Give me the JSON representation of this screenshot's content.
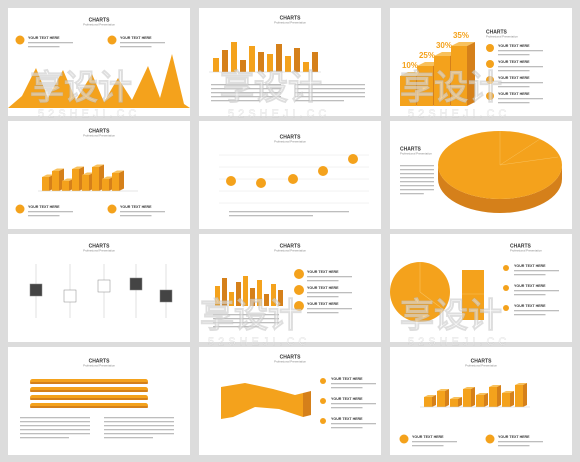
{
  "slides": [
    {
      "title": "CHARTS",
      "subtitle": "Professional Presentation",
      "items": [
        "YOUR TEXT HERE",
        "YOUR TEXT HERE"
      ]
    },
    {
      "title": "CHARTS",
      "subtitle": "Professional Presentation",
      "items": []
    },
    {
      "title": "CHARTS",
      "subtitle": "Professional Presentation",
      "items": [
        "YOUR TEXT HERE",
        "YOUR TEXT HERE",
        "YOUR TEXT HERE",
        "YOUR TEXT HERE"
      ],
      "labels": [
        "10%",
        "25%",
        "30%",
        "35%"
      ]
    },
    {
      "title": "CHARTS",
      "subtitle": "Professional Presentation",
      "items": [
        "YOUR TEXT HERE",
        "YOUR TEXT HERE"
      ]
    },
    {
      "title": "CHARTS",
      "subtitle": "Professional Presentation",
      "items": []
    },
    {
      "title": "CHARTS",
      "subtitle": "Professional Presentation",
      "items": []
    },
    {
      "title": "CHARTS",
      "subtitle": "Professional Presentation",
      "items": []
    },
    {
      "title": "CHARTS",
      "subtitle": "Professional Presentation",
      "items": [
        "YOUR TEXT HERE",
        "YOUR TEXT HERE",
        "YOUR TEXT HERE"
      ]
    },
    {
      "title": "CHARTS",
      "subtitle": "Professional Presentation",
      "items": [
        "YOUR TEXT HERE",
        "YOUR TEXT HERE",
        "YOUR TEXT HERE"
      ]
    },
    {
      "title": "CHARTS",
      "subtitle": "Professional Presentation",
      "items": []
    },
    {
      "title": "CHARTS",
      "subtitle": "Professional Presentation",
      "items": [
        "YOUR TEXT HERE",
        "YOUR TEXT HERE",
        "YOUR TEXT HERE"
      ]
    },
    {
      "title": "CHARTS",
      "subtitle": "Professional Presentation",
      "items": [
        "YOUR TEXT HERE",
        "YOUR TEXT HERE"
      ]
    }
  ],
  "watermark": {
    "mark": "享设计",
    "url": "52SHEJI.CC"
  }
}
